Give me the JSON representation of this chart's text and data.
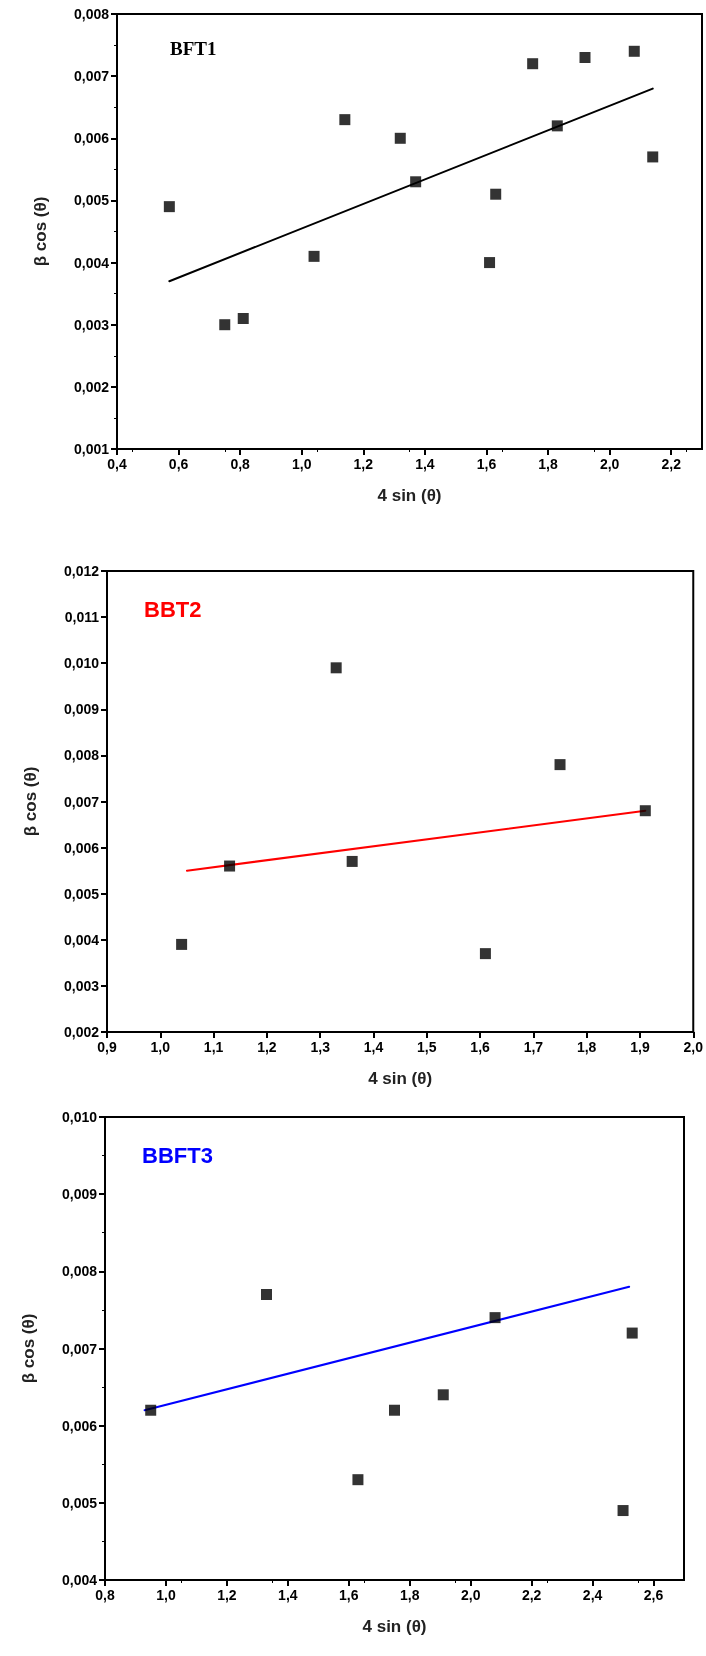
{
  "chart_data": [
    {
      "type": "scatter",
      "title": "BFT1",
      "xlabel": "4 sin (θ)",
      "ylabel": "β cos (θ)",
      "xlim": [
        0.4,
        2.3
      ],
      "ylim": [
        0.001,
        0.008
      ],
      "xticks": [
        {
          "value": 0.4,
          "label": "0,4"
        },
        {
          "value": 0.6,
          "label": "0,6"
        },
        {
          "value": 0.8,
          "label": "0,8"
        },
        {
          "value": 1.0,
          "label": "1,0"
        },
        {
          "value": 1.2,
          "label": "1,2"
        },
        {
          "value": 1.4,
          "label": "1,4"
        },
        {
          "value": 1.6,
          "label": "1,6"
        },
        {
          "value": 1.8,
          "label": "1,8"
        },
        {
          "value": 2.0,
          "label": "2,0"
        },
        {
          "value": 2.2,
          "label": "2,2"
        }
      ],
      "yticks": [
        {
          "value": 0.001,
          "label": "0,001"
        },
        {
          "value": 0.002,
          "label": "0,002"
        },
        {
          "value": 0.003,
          "label": "0,003"
        },
        {
          "value": 0.004,
          "label": "0,004"
        },
        {
          "value": 0.005,
          "label": "0,005"
        },
        {
          "value": 0.006,
          "label": "0,006"
        },
        {
          "value": 0.007,
          "label": "0,007"
        },
        {
          "value": 0.008,
          "label": "0,008"
        }
      ],
      "grid": false,
      "series": [
        {
          "marker": "square",
          "color": "#000000",
          "x": [
            0.57,
            0.75,
            0.81,
            1.04,
            1.14,
            1.32,
            1.37,
            1.61,
            1.63,
            1.75,
            1.83,
            1.92,
            2.08,
            2.14
          ],
          "values": [
            0.0049,
            0.003,
            0.0031,
            0.0041,
            0.0063,
            0.006,
            0.0053,
            0.004,
            0.0051,
            0.0072,
            0.0062,
            0.0073,
            0.0074,
            0.0057
          ]
        },
        {
          "type": "line",
          "color": "#000000",
          "x": [
            0.57,
            2.14
          ],
          "values": [
            0.0037,
            0.0068
          ]
        }
      ]
    },
    {
      "type": "scatter",
      "title": "BBT2",
      "xlabel": "4 sin (θ)",
      "ylabel": "β cos (θ)",
      "xlim": [
        0.9,
        2.0
      ],
      "ylim": [
        0.002,
        0.012
      ],
      "xticks": [
        {
          "value": 0.9,
          "label": "0,9"
        },
        {
          "value": 1.0,
          "label": "1,0"
        },
        {
          "value": 1.1,
          "label": "1,1"
        },
        {
          "value": 1.2,
          "label": "1,2"
        },
        {
          "value": 1.3,
          "label": "1,3"
        },
        {
          "value": 1.4,
          "label": "1,4"
        },
        {
          "value": 1.5,
          "label": "1,5"
        },
        {
          "value": 1.6,
          "label": "1,6"
        },
        {
          "value": 1.7,
          "label": "1,7"
        },
        {
          "value": 1.8,
          "label": "1,8"
        },
        {
          "value": 1.9,
          "label": "1,9"
        },
        {
          "value": 2.0,
          "label": "2,0"
        }
      ],
      "yticks": [
        {
          "value": 0.002,
          "label": "0,002"
        },
        {
          "value": 0.003,
          "label": "0,003"
        },
        {
          "value": 0.004,
          "label": "0,004"
        },
        {
          "value": 0.005,
          "label": "0,005"
        },
        {
          "value": 0.006,
          "label": "0,006"
        },
        {
          "value": 0.007,
          "label": "0,007"
        },
        {
          "value": 0.008,
          "label": "0,008"
        },
        {
          "value": 0.009,
          "label": "0,009"
        },
        {
          "value": 0.01,
          "label": "0,010"
        },
        {
          "value": 0.011,
          "label": "0,011"
        },
        {
          "value": 0.012,
          "label": "0,012"
        }
      ],
      "grid": false,
      "series": [
        {
          "marker": "square",
          "color": "#000000",
          "x": [
            1.04,
            1.13,
            1.33,
            1.36,
            1.61,
            1.75,
            1.91
          ],
          "values": [
            0.0039,
            0.0056,
            0.0099,
            0.0057,
            0.0037,
            0.0078,
            0.0068
          ]
        },
        {
          "type": "line",
          "color": "#ff0000",
          "x": [
            1.05,
            1.91
          ],
          "values": [
            0.0055,
            0.0068
          ]
        }
      ]
    },
    {
      "type": "scatter",
      "title": "BBFT3",
      "xlabel": "4 sin (θ)",
      "ylabel": "β cos (θ)",
      "xlim": [
        0.8,
        2.7
      ],
      "ylim": [
        0.004,
        0.01
      ],
      "xticks": [
        {
          "value": 0.8,
          "label": "0,8"
        },
        {
          "value": 1.0,
          "label": "1,0"
        },
        {
          "value": 1.2,
          "label": "1,2"
        },
        {
          "value": 1.4,
          "label": "1,4"
        },
        {
          "value": 1.6,
          "label": "1,6"
        },
        {
          "value": 1.8,
          "label": "1,8"
        },
        {
          "value": 2.0,
          "label": "2,0"
        },
        {
          "value": 2.2,
          "label": "2,2"
        },
        {
          "value": 2.4,
          "label": "2,4"
        },
        {
          "value": 2.6,
          "label": "2,6"
        }
      ],
      "yticks": [
        {
          "value": 0.004,
          "label": "0,004"
        },
        {
          "value": 0.005,
          "label": "0,005"
        },
        {
          "value": 0.006,
          "label": "0,006"
        },
        {
          "value": 0.007,
          "label": "0,007"
        },
        {
          "value": 0.008,
          "label": "0,008"
        },
        {
          "value": 0.009,
          "label": "0,009"
        },
        {
          "value": 0.01,
          "label": "0,010"
        }
      ],
      "grid": false,
      "series": [
        {
          "marker": "square",
          "color": "#000000",
          "x": [
            0.95,
            1.33,
            1.63,
            1.75,
            1.91,
            2.08,
            2.5,
            2.53
          ],
          "values": [
            0.0062,
            0.0077,
            0.0053,
            0.0062,
            0.0064,
            0.0074,
            0.0049,
            0.0072
          ]
        },
        {
          "type": "line",
          "color": "#0000ff",
          "x": [
            0.93,
            2.52
          ],
          "values": [
            0.0062,
            0.0078
          ]
        }
      ]
    }
  ]
}
